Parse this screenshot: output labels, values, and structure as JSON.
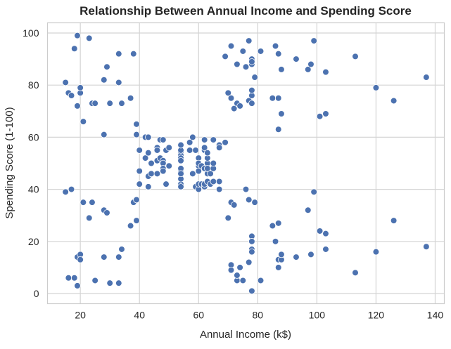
{
  "chart_data": {
    "type": "scatter",
    "title": "Relationship Between Annual Income and Spending Score",
    "xlabel": "Annual Income (k$)",
    "ylabel": "Spending Score (1-100)",
    "xlim": [
      8.9,
      143.1
    ],
    "ylim": [
      -3.9,
      103.9
    ],
    "xticks": [
      20,
      40,
      60,
      80,
      100,
      120,
      140
    ],
    "yticks": [
      0,
      20,
      40,
      60,
      80,
      100
    ],
    "grid": true,
    "marker_color": "#4c72b0",
    "points": [
      [
        15,
        39
      ],
      [
        15,
        81
      ],
      [
        16,
        6
      ],
      [
        16,
        77
      ],
      [
        17,
        40
      ],
      [
        17,
        76
      ],
      [
        18,
        6
      ],
      [
        18,
        94
      ],
      [
        19,
        3
      ],
      [
        19,
        72
      ],
      [
        19,
        14
      ],
      [
        19,
        99
      ],
      [
        20,
        15
      ],
      [
        20,
        77
      ],
      [
        20,
        13
      ],
      [
        20,
        79
      ],
      [
        21,
        35
      ],
      [
        21,
        66
      ],
      [
        23,
        29
      ],
      [
        23,
        98
      ],
      [
        24,
        35
      ],
      [
        24,
        73
      ],
      [
        25,
        5
      ],
      [
        25,
        73
      ],
      [
        28,
        14
      ],
      [
        28,
        82
      ],
      [
        28,
        32
      ],
      [
        28,
        61
      ],
      [
        29,
        31
      ],
      [
        29,
        87
      ],
      [
        30,
        4
      ],
      [
        30,
        73
      ],
      [
        33,
        4
      ],
      [
        33,
        92
      ],
      [
        33,
        14
      ],
      [
        33,
        81
      ],
      [
        34,
        17
      ],
      [
        34,
        73
      ],
      [
        37,
        26
      ],
      [
        37,
        75
      ],
      [
        38,
        35
      ],
      [
        38,
        92
      ],
      [
        39,
        36
      ],
      [
        39,
        61
      ],
      [
        39,
        28
      ],
      [
        39,
        65
      ],
      [
        40,
        55
      ],
      [
        40,
        47
      ],
      [
        40,
        42
      ],
      [
        40,
        42
      ],
      [
        42,
        52
      ],
      [
        42,
        60
      ],
      [
        43,
        54
      ],
      [
        43,
        60
      ],
      [
        43,
        45
      ],
      [
        43,
        41
      ],
      [
        44,
        50
      ],
      [
        44,
        46
      ],
      [
        46,
        51
      ],
      [
        46,
        46
      ],
      [
        46,
        56
      ],
      [
        46,
        55
      ],
      [
        47,
        52
      ],
      [
        47,
        59
      ],
      [
        48,
        51
      ],
      [
        48,
        59
      ],
      [
        48,
        50
      ],
      [
        48,
        48
      ],
      [
        48,
        59
      ],
      [
        48,
        47
      ],
      [
        49,
        55
      ],
      [
        49,
        42
      ],
      [
        50,
        49
      ],
      [
        50,
        56
      ],
      [
        54,
        47
      ],
      [
        54,
        54
      ],
      [
        54,
        53
      ],
      [
        54,
        48
      ],
      [
        54,
        52
      ],
      [
        54,
        42
      ],
      [
        54,
        51
      ],
      [
        54,
        55
      ],
      [
        54,
        41
      ],
      [
        54,
        44
      ],
      [
        54,
        57
      ],
      [
        54,
        46
      ],
      [
        57,
        58
      ],
      [
        57,
        55
      ],
      [
        58,
        60
      ],
      [
        58,
        46
      ],
      [
        59,
        55
      ],
      [
        59,
        41
      ],
      [
        60,
        49
      ],
      [
        60,
        40
      ],
      [
        60,
        42
      ],
      [
        60,
        52
      ],
      [
        60,
        47
      ],
      [
        60,
        50
      ],
      [
        61,
        42
      ],
      [
        61,
        49
      ],
      [
        62,
        41
      ],
      [
        62,
        48
      ],
      [
        62,
        59
      ],
      [
        62,
        55
      ],
      [
        62,
        56
      ],
      [
        62,
        42
      ],
      [
        63,
        50
      ],
      [
        63,
        46
      ],
      [
        63,
        43
      ],
      [
        63,
        48
      ],
      [
        63,
        52
      ],
      [
        63,
        54
      ],
      [
        64,
        42
      ],
      [
        64,
        46
      ],
      [
        65,
        48
      ],
      [
        65,
        50
      ],
      [
        65,
        43
      ],
      [
        65,
        59
      ],
      [
        67,
        43
      ],
      [
        67,
        57
      ],
      [
        67,
        56
      ],
      [
        67,
        40
      ],
      [
        69,
        58
      ],
      [
        69,
        91
      ],
      [
        70,
        29
      ],
      [
        70,
        77
      ],
      [
        71,
        35
      ],
      [
        71,
        95
      ],
      [
        71,
        11
      ],
      [
        71,
        75
      ],
      [
        71,
        9
      ],
      [
        71,
        75
      ],
      [
        72,
        34
      ],
      [
        72,
        71
      ],
      [
        73,
        5
      ],
      [
        73,
        88
      ],
      [
        73,
        7
      ],
      [
        73,
        73
      ],
      [
        74,
        10
      ],
      [
        74,
        72
      ],
      [
        75,
        5
      ],
      [
        75,
        93
      ],
      [
        76,
        40
      ],
      [
        76,
        87
      ],
      [
        77,
        12
      ],
      [
        77,
        97
      ],
      [
        77,
        36
      ],
      [
        77,
        74
      ],
      [
        78,
        22
      ],
      [
        78,
        90
      ],
      [
        78,
        17
      ],
      [
        78,
        88
      ],
      [
        78,
        20
      ],
      [
        78,
        76
      ],
      [
        78,
        16
      ],
      [
        78,
        89
      ],
      [
        78,
        1
      ],
      [
        78,
        78
      ],
      [
        78,
        1
      ],
      [
        78,
        73
      ],
      [
        79,
        35
      ],
      [
        79,
        83
      ],
      [
        81,
        5
      ],
      [
        81,
        93
      ],
      [
        85,
        26
      ],
      [
        85,
        75
      ],
      [
        86,
        20
      ],
      [
        86,
        95
      ],
      [
        87,
        27
      ],
      [
        87,
        63
      ],
      [
        87,
        13
      ],
      [
        87,
        75
      ],
      [
        87,
        10
      ],
      [
        87,
        92
      ],
      [
        88,
        13
      ],
      [
        88,
        86
      ],
      [
        88,
        15
      ],
      [
        88,
        69
      ],
      [
        93,
        14
      ],
      [
        93,
        90
      ],
      [
        97,
        32
      ],
      [
        97,
        86
      ],
      [
        98,
        15
      ],
      [
        98,
        88
      ],
      [
        99,
        39
      ],
      [
        99,
        97
      ],
      [
        101,
        24
      ],
      [
        101,
        68
      ],
      [
        103,
        17
      ],
      [
        103,
        85
      ],
      [
        103,
        23
      ],
      [
        103,
        69
      ],
      [
        113,
        8
      ],
      [
        113,
        91
      ],
      [
        120,
        16
      ],
      [
        120,
        79
      ],
      [
        126,
        28
      ],
      [
        126,
        74
      ],
      [
        137,
        18
      ],
      [
        137,
        83
      ]
    ]
  }
}
